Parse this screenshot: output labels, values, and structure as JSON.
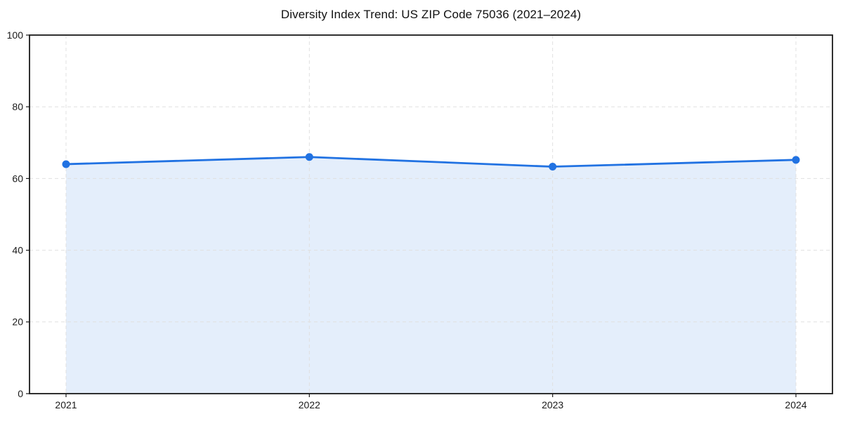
{
  "chart_data": {
    "type": "area",
    "title": "Diversity Index Trend: US ZIP Code 75036 (2021–2024)",
    "categories": [
      "2021",
      "2022",
      "2023",
      "2024"
    ],
    "series": [
      {
        "name": "Diversity Index",
        "values": [
          64.0,
          66.0,
          63.3,
          65.2
        ]
      }
    ],
    "xlabel": "",
    "ylabel": "",
    "ylim": [
      0,
      100
    ],
    "yticks": [
      0,
      20,
      40,
      60,
      80,
      100
    ],
    "grid": true,
    "grid_style": "dashed",
    "legend_position": "none",
    "colors": {
      "line": "#2172e2",
      "marker": "#2172e2",
      "fill": "rgba(33, 114, 226, 0.12)",
      "grid": "#e0e0e0",
      "axis": "#1a1a1a",
      "tick_label": "#1a1a1a",
      "background": "#ffffff"
    }
  }
}
